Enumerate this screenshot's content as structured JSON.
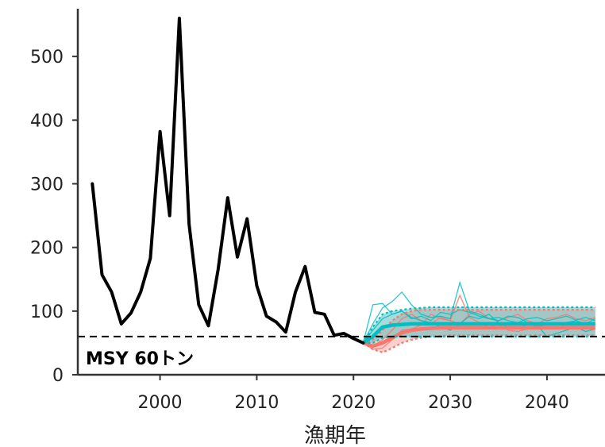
{
  "chart_data": {
    "type": "line",
    "title": "",
    "xlabel": "漁期年",
    "ylabel": "",
    "xlim": [
      1991.5,
      2046
    ],
    "ylim": [
      0,
      575
    ],
    "x_ticks": [
      2000,
      2010,
      2020,
      2030,
      2040
    ],
    "x_tick_labels": [
      "2000",
      "2010",
      "2020",
      "2030",
      "2040"
    ],
    "y_ticks": [
      0,
      100,
      200,
      300,
      400,
      500
    ],
    "y_tick_labels": [
      "0",
      "100",
      "200",
      "300",
      "400",
      "500"
    ],
    "grid": false,
    "reference_line": {
      "value": 60,
      "label": "MSY 60トン"
    },
    "colors": {
      "observed": "#000000",
      "scenario_red": "#f8766d",
      "scenario_teal": "#00bfc4",
      "band_red": "#f4a9a3",
      "band_teal": "#5fbfbf"
    },
    "series": [
      {
        "type": "observed",
        "x": [
          1993,
          1994,
          1995,
          1996,
          1997,
          1998,
          1999,
          2000,
          2001,
          2002,
          2003,
          2004,
          2005,
          2006,
          2007,
          2008,
          2009,
          2010,
          2011,
          2012,
          2013,
          2014,
          2015,
          2016,
          2017,
          2018,
          2019,
          2020,
          2021
        ],
        "values": [
          300,
          157,
          130,
          80,
          97,
          130,
          183,
          382,
          250,
          560,
          237,
          110,
          77,
          165,
          278,
          185,
          245,
          140,
          92,
          83,
          67,
          130,
          170,
          98,
          95,
          62,
          65,
          57,
          50
        ]
      }
    ],
    "projections": [
      {
        "color_key": "scenario_red",
        "x": [
          2021,
          2022,
          2023,
          2024,
          2025,
          2026,
          2027,
          2028,
          2029,
          2030,
          2031,
          2032,
          2033,
          2034,
          2035,
          2036,
          2037,
          2038,
          2039,
          2040,
          2041,
          2042,
          2043,
          2044,
          2045
        ],
        "lower": [
          50,
          40,
          35,
          42,
          50,
          55,
          58,
          60,
          61,
          62,
          62,
          62,
          62,
          62,
          62,
          62,
          62,
          62,
          62,
          62,
          62,
          62,
          62,
          62,
          62
        ],
        "median": [
          50,
          45,
          50,
          58,
          66,
          70,
          72,
          73,
          74,
          74,
          74,
          74,
          74,
          74,
          74,
          74,
          74,
          74,
          74,
          74,
          74,
          74,
          74,
          74,
          74
        ],
        "upper": [
          50,
          55,
          70,
          85,
          95,
          100,
          102,
          102,
          102,
          102,
          102,
          102,
          102,
          102,
          102,
          102,
          102,
          102,
          102,
          102,
          102,
          102,
          102,
          102,
          102
        ],
        "samples": [
          [
            50,
            40,
            42,
            55,
            70,
            72,
            78,
            95,
            88,
            85,
            125,
            90,
            82,
            75,
            80,
            70,
            68,
            72,
            78,
            75,
            72,
            80,
            85,
            78,
            80
          ],
          [
            50,
            45,
            55,
            70,
            88,
            95,
            85,
            80,
            90,
            85,
            80,
            95,
            100,
            88,
            85,
            90,
            95,
            85,
            80,
            88,
            90,
            95,
            88,
            85,
            90
          ]
        ]
      },
      {
        "color_key": "scenario_teal",
        "x": [
          2021,
          2022,
          2023,
          2024,
          2025,
          2026,
          2027,
          2028,
          2029,
          2030,
          2031,
          2032,
          2033,
          2034,
          2035,
          2036,
          2037,
          2038,
          2039,
          2040,
          2041,
          2042,
          2043,
          2044,
          2045
        ],
        "lower": [
          50,
          50,
          58,
          60,
          60,
          60,
          60,
          60,
          60,
          60,
          60,
          60,
          60,
          60,
          60,
          60,
          60,
          60,
          60,
          60,
          60,
          60,
          60,
          60,
          60
        ],
        "median": [
          50,
          60,
          75,
          78,
          79,
          80,
          80,
          80,
          80,
          80,
          80,
          80,
          80,
          80,
          80,
          80,
          80,
          80,
          80,
          80,
          80,
          80,
          80,
          80,
          80
        ],
        "upper": [
          50,
          75,
          95,
          100,
          102,
          104,
          105,
          106,
          106,
          106,
          106,
          106,
          106,
          106,
          106,
          106,
          106,
          106,
          106,
          106,
          106,
          106,
          106,
          106,
          106
        ],
        "samples": [
          [
            50,
            80,
            105,
            115,
            130,
            110,
            95,
            90,
            92,
            88,
            145,
            100,
            95,
            88,
            85,
            92,
            90,
            82,
            75,
            80,
            78,
            82,
            85,
            80,
            88
          ],
          [
            50,
            70,
            88,
            95,
            100,
            90,
            85,
            82,
            75,
            70,
            80,
            92,
            88,
            95,
            82,
            75,
            72,
            80,
            78,
            60,
            65,
            70,
            75,
            68,
            72
          ],
          [
            50,
            110,
            112,
            95,
            100,
            88,
            92,
            85,
            98,
            95,
            102,
            98,
            92,
            88,
            90,
            85,
            82,
            88,
            90,
            85,
            88,
            92,
            86,
            90,
            85
          ]
        ]
      }
    ]
  }
}
